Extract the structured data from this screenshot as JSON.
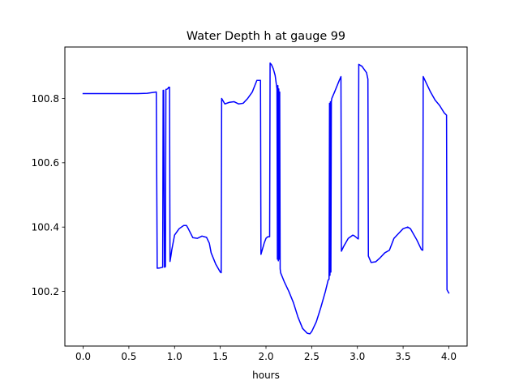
{
  "chart_data": {
    "type": "line",
    "title": "Water Depth h at gauge 99",
    "xlabel": "hours",
    "ylabel": "",
    "xlim": [
      -0.2,
      4.2
    ],
    "ylim": [
      100.03,
      100.96
    ],
    "grid": false,
    "xticks": [
      {
        "value": 0.0,
        "label": "0.0"
      },
      {
        "value": 0.5,
        "label": "0.5"
      },
      {
        "value": 1.0,
        "label": "1.0"
      },
      {
        "value": 1.5,
        "label": "1.5"
      },
      {
        "value": 2.0,
        "label": "2.0"
      },
      {
        "value": 2.5,
        "label": "2.5"
      },
      {
        "value": 3.0,
        "label": "3.0"
      },
      {
        "value": 3.5,
        "label": "3.5"
      },
      {
        "value": 4.0,
        "label": "4.0"
      }
    ],
    "yticks": [
      {
        "value": 100.2,
        "label": "100.2"
      },
      {
        "value": 100.4,
        "label": "100.4"
      },
      {
        "value": 100.6,
        "label": "100.6"
      },
      {
        "value": 100.8,
        "label": "100.8"
      }
    ],
    "series": [
      {
        "color": "#0000ff",
        "x": [
          0.0,
          0.2,
          0.4,
          0.6,
          0.7,
          0.8,
          0.81,
          0.84,
          0.87,
          0.875,
          0.88,
          0.89,
          0.9,
          0.905,
          0.91,
          0.925,
          0.935,
          0.945,
          0.95,
          0.96,
          0.97,
          1.0,
          1.05,
          1.1,
          1.13,
          1.15,
          1.2,
          1.25,
          1.3,
          1.35,
          1.38,
          1.4,
          1.45,
          1.5,
          1.51,
          1.515,
          1.55,
          1.6,
          1.65,
          1.7,
          1.75,
          1.8,
          1.85,
          1.9,
          1.94,
          1.945,
          1.96,
          1.98,
          2.0,
          2.02,
          2.04,
          2.045,
          2.06,
          2.08,
          2.1,
          2.12,
          2.125,
          2.13,
          2.135,
          2.14,
          2.145,
          2.15,
          2.155,
          2.16,
          2.2,
          2.25,
          2.3,
          2.35,
          2.4,
          2.45,
          2.48,
          2.5,
          2.55,
          2.6,
          2.65,
          2.68,
          2.69,
          2.695,
          2.7,
          2.705,
          2.71,
          2.715,
          2.72,
          2.75,
          2.8,
          2.82,
          2.825,
          2.85,
          2.9,
          2.95,
          2.97,
          3.0,
          3.01,
          3.015,
          3.05,
          3.1,
          3.115,
          3.12,
          3.15,
          3.2,
          3.25,
          3.3,
          3.35,
          3.4,
          3.45,
          3.5,
          3.55,
          3.58,
          3.6,
          3.65,
          3.7,
          3.715,
          3.72,
          3.75,
          3.8,
          3.85,
          3.9,
          3.95,
          3.975,
          3.98,
          4.0
        ],
        "y": [
          100.815,
          100.815,
          100.815,
          100.815,
          100.816,
          100.82,
          100.272,
          100.273,
          100.275,
          100.825,
          100.825,
          100.275,
          100.277,
          100.828,
          100.828,
          100.83,
          100.835,
          100.835,
          100.293,
          100.31,
          100.33,
          100.375,
          100.395,
          100.405,
          100.405,
          100.395,
          100.367,
          100.365,
          100.372,
          100.368,
          100.35,
          100.32,
          100.285,
          100.26,
          100.258,
          100.8,
          100.783,
          100.788,
          100.79,
          100.783,
          100.785,
          100.8,
          100.82,
          100.856,
          100.856,
          100.315,
          100.33,
          100.35,
          100.365,
          100.37,
          100.37,
          100.91,
          100.905,
          100.892,
          100.872,
          100.83,
          100.3,
          100.84,
          100.295,
          100.83,
          100.3,
          100.82,
          100.27,
          100.258,
          100.23,
          100.2,
          100.165,
          100.12,
          100.085,
          100.07,
          100.068,
          100.075,
          100.105,
          100.15,
          100.2,
          100.235,
          100.238,
          100.785,
          100.25,
          100.79,
          100.26,
          100.79,
          100.8,
          100.82,
          100.855,
          100.868,
          100.325,
          100.34,
          100.365,
          100.375,
          100.372,
          100.365,
          100.363,
          100.906,
          100.9,
          100.88,
          100.86,
          100.31,
          100.29,
          100.292,
          100.305,
          100.32,
          100.328,
          100.365,
          100.38,
          100.395,
          100.4,
          100.395,
          100.385,
          100.36,
          100.33,
          100.328,
          100.868,
          100.85,
          100.82,
          100.795,
          100.778,
          100.755,
          100.748,
          100.205,
          100.195
        ]
      }
    ]
  }
}
